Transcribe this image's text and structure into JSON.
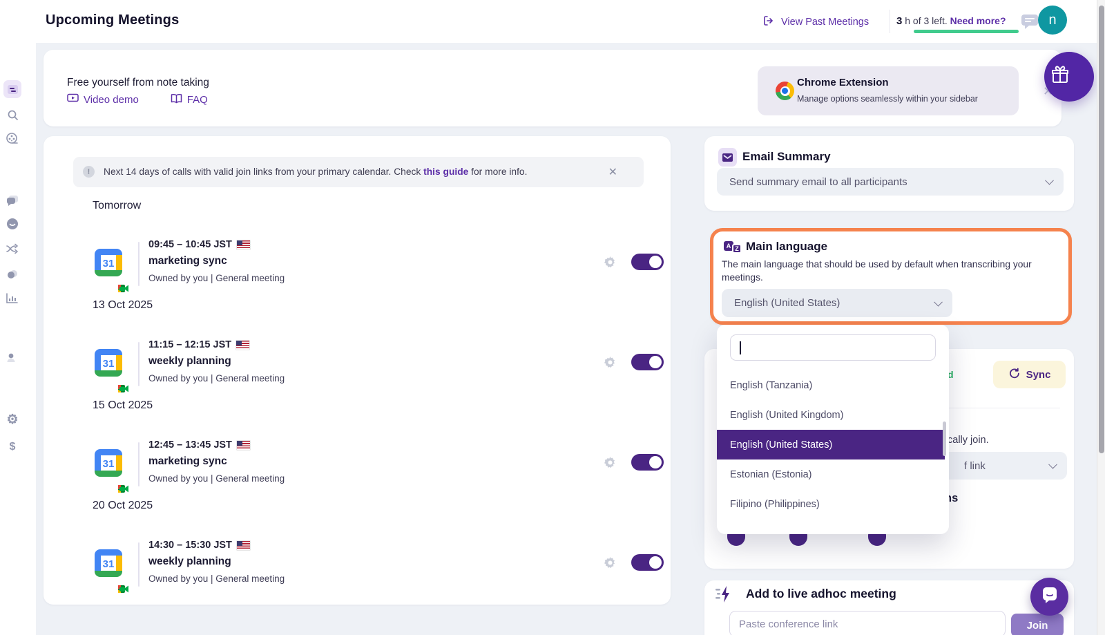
{
  "app": {
    "title": "Upcoming Meetings"
  },
  "topbar": {
    "view_past": "View Past Meetings",
    "quota_hours": "3",
    "quota_rest": "h of 3 left.",
    "need_more": "Need more?",
    "avatar_initial": "n"
  },
  "promo": {
    "headline": "Free yourself from note taking",
    "video_demo": "Video demo",
    "faq": "FAQ",
    "chrome_title": "Chrome Extension",
    "chrome_subtitle": "Manage options seamlessly within your sidebar",
    "close": "✕"
  },
  "meetings": {
    "info_before": "Next 14 days of calls with valid join links from your primary calendar. Check ",
    "info_link": "this guide",
    "info_after": " for more info.",
    "info_close": "✕",
    "groups": [
      {
        "label": "Tomorrow",
        "items": [
          {
            "time": "09:45 – 10:45 JST",
            "flag": "us-flag-icon",
            "title": "marketing sync",
            "meta": "Owned by you | General meeting",
            "enabled": true
          }
        ]
      },
      {
        "label": "13 Oct 2025",
        "items": [
          {
            "time": "11:15 – 12:15 JST",
            "flag": "us-flag-icon",
            "title": "weekly planning",
            "meta": "Owned by you | General meeting",
            "enabled": true
          }
        ]
      },
      {
        "label": "15 Oct 2025",
        "items": [
          {
            "time": "12:45 – 13:45 JST",
            "flag": "us-flag-icon",
            "title": "marketing sync",
            "meta": "Owned by you | General meeting",
            "enabled": true
          }
        ]
      },
      {
        "label": "20 Oct 2025",
        "items": [
          {
            "time": "14:30 – 15:30 JST",
            "flag": "us-flag-icon",
            "title": "weekly planning",
            "meta": "Owned by you | General meeting",
            "enabled": true
          }
        ]
      }
    ]
  },
  "email_summary": {
    "title": "Email Summary",
    "value": "Send summary email to all participants"
  },
  "main_language": {
    "title": "Main language",
    "description": "The main language that should be used by default when transcribing your meetings.",
    "value": "English (United States)"
  },
  "language_dropdown": {
    "search_value": "",
    "options": [
      "English (Tanzania)",
      "English (United Kingdom)",
      "English (United States)",
      "Estonian (Estonia)",
      "Filipino (Philippines)"
    ],
    "selected": "English (United States)"
  },
  "sync_card": {
    "status_fragment": "d",
    "sync_label": "Sync",
    "join_fragment": "cally join.",
    "select_fragment": "f link",
    "heading_fragment": "ns"
  },
  "adhoc": {
    "title": "Add to live adhoc meeting",
    "placeholder": "Paste conference link",
    "join_label": "Join"
  },
  "sidebar_icons": [
    "collapse-icon",
    "meetings-icon",
    "search-icon",
    "library-icon",
    "chat-icon",
    "bot-icon",
    "shuffle-icon",
    "integrations-icon",
    "analytics-icon",
    "team-icon",
    "settings-icon",
    "billing-icon"
  ],
  "colors": {
    "brand_purple": "#4a2583",
    "link_purple": "#5d2fa8",
    "accent_orange": "#f5824d",
    "progress_green": "#40cb8d",
    "status_green": "#27b061",
    "avatar_teal": "#0f97a1",
    "sync_button_bg": "#fbf5dc"
  }
}
